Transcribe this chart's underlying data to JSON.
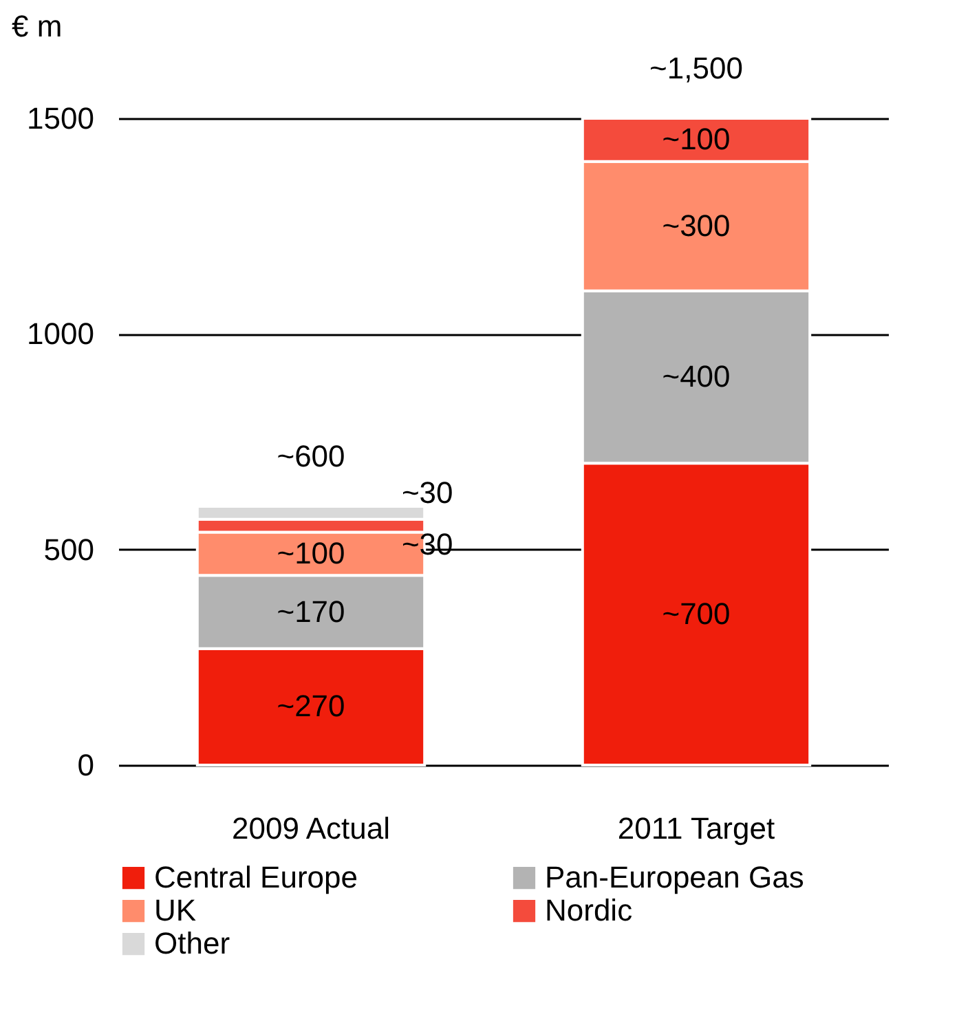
{
  "chart_data": {
    "type": "bar",
    "stacked": true,
    "ylabel": "€ m",
    "categories": [
      "2009 Actual",
      "2011 Target"
    ],
    "series": [
      {
        "name": "Central Europe",
        "color": "#f01e0c",
        "values": [
          270,
          700
        ],
        "value_labels": [
          "~270",
          "~700"
        ]
      },
      {
        "name": "Pan-European Gas",
        "color": "#b3b3b3",
        "values": [
          170,
          400
        ],
        "value_labels": [
          "~170",
          "~400"
        ]
      },
      {
        "name": "UK",
        "color": "#ff8c6c",
        "values": [
          100,
          300
        ],
        "value_labels": [
          "~100",
          "~300"
        ]
      },
      {
        "name": "Nordic",
        "color": "#f44b3c",
        "values": [
          30,
          100
        ],
        "value_labels": [
          "~30",
          "~100"
        ]
      },
      {
        "name": "Other",
        "color": "#d9d9d9",
        "values": [
          30,
          null
        ],
        "value_labels": [
          "~30",
          null
        ]
      }
    ],
    "totals": [
      "~600",
      "~1,500"
    ],
    "ylim": [
      0,
      1500
    ],
    "yticks": [
      0,
      500,
      {
        "value": 1000,
        "label": "1000"
      },
      {
        "value": 1500,
        "label": "1500"
      }
    ],
    "grid": "y",
    "legend": "bottom"
  }
}
